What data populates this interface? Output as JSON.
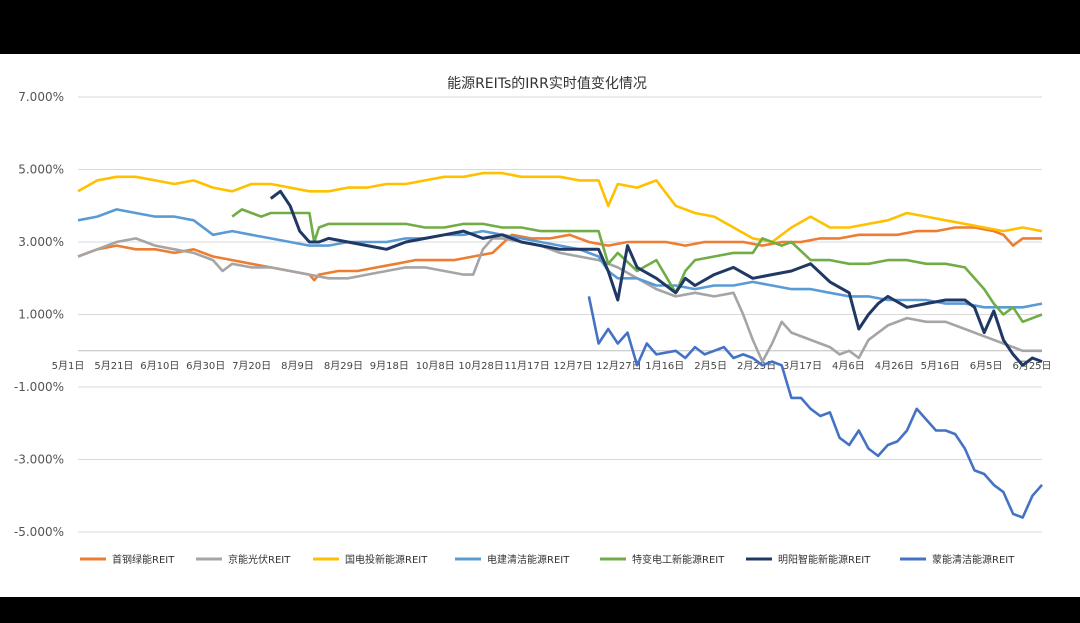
{
  "chart_data": {
    "type": "line",
    "title": "能源REITs的IRR实时值变化情况",
    "ylabel": "",
    "xlabel": "",
    "ylim": [
      -5,
      7
    ],
    "y_ticks": [
      "7.000%",
      "5.000%",
      "3.000%",
      "1.000%",
      "-1.000%",
      "-3.000%",
      "-5.000%"
    ],
    "y_tick_values": [
      7,
      5,
      3,
      1,
      -1,
      -3,
      -5
    ],
    "x_ticks": [
      "5月1日",
      "5月21日",
      "6月10日",
      "6月30日",
      "7月20日",
      "8月9日",
      "8月29日",
      "9月18日",
      "10月8日",
      "10月28日",
      "11月17日",
      "12月7日",
      "12月27日",
      "1月16日",
      "2月5日",
      "2月25日",
      "3月17日",
      "4月6日",
      "4月26日",
      "5月16日",
      "6月5日",
      "6月25日"
    ],
    "grid": true,
    "legend_position": "bottom",
    "series": [
      {
        "name": "首钢绿能REIT",
        "color": "#ED7D31",
        "x": [
          0,
          0.02,
          0.04,
          0.06,
          0.08,
          0.1,
          0.12,
          0.14,
          0.16,
          0.18,
          0.2,
          0.22,
          0.24,
          0.245,
          0.25,
          0.27,
          0.29,
          0.31,
          0.33,
          0.35,
          0.37,
          0.39,
          0.41,
          0.43,
          0.45,
          0.47,
          0.49,
          0.51,
          0.53,
          0.55,
          0.57,
          0.59,
          0.61,
          0.63,
          0.65,
          0.67,
          0.69,
          0.71,
          0.73,
          0.75,
          0.77,
          0.79,
          0.81,
          0.83,
          0.85,
          0.87,
          0.89,
          0.91,
          0.93,
          0.95,
          0.96,
          0.97,
          0.98,
          1
        ],
        "y": [
          2.6,
          2.8,
          2.9,
          2.8,
          2.8,
          2.7,
          2.8,
          2.6,
          2.5,
          2.4,
          2.3,
          2.2,
          2.1,
          1.95,
          2.1,
          2.2,
          2.2,
          2.3,
          2.4,
          2.5,
          2.5,
          2.5,
          2.6,
          2.7,
          3.2,
          3.1,
          3.1,
          3.2,
          3.0,
          2.9,
          3.0,
          3.0,
          3.0,
          2.9,
          3.0,
          3.0,
          3.0,
          2.9,
          3.0,
          3.0,
          3.1,
          3.1,
          3.2,
          3.2,
          3.2,
          3.3,
          3.3,
          3.4,
          3.4,
          3.3,
          3.2,
          2.9,
          3.1,
          3.1
        ]
      },
      {
        "name": "京能光伏REIT",
        "color": "#A5A5A5",
        "x": [
          0,
          0.02,
          0.04,
          0.06,
          0.08,
          0.1,
          0.12,
          0.14,
          0.15,
          0.16,
          0.18,
          0.2,
          0.22,
          0.24,
          0.26,
          0.28,
          0.3,
          0.32,
          0.34,
          0.36,
          0.38,
          0.4,
          0.41,
          0.42,
          0.43,
          0.44,
          0.46,
          0.48,
          0.5,
          0.52,
          0.54,
          0.56,
          0.58,
          0.6,
          0.62,
          0.64,
          0.66,
          0.68,
          0.69,
          0.7,
          0.71,
          0.72,
          0.73,
          0.74,
          0.76,
          0.78,
          0.79,
          0.8,
          0.81,
          0.82,
          0.84,
          0.86,
          0.88,
          0.9,
          0.92,
          0.94,
          0.96,
          0.98,
          1
        ],
        "y": [
          2.6,
          2.8,
          3.0,
          3.1,
          2.9,
          2.8,
          2.7,
          2.5,
          2.2,
          2.4,
          2.3,
          2.3,
          2.2,
          2.1,
          2.0,
          2.0,
          2.1,
          2.2,
          2.3,
          2.3,
          2.2,
          2.1,
          2.1,
          2.8,
          3.1,
          3.1,
          3.0,
          2.9,
          2.7,
          2.6,
          2.5,
          2.3,
          2.0,
          1.7,
          1.5,
          1.6,
          1.5,
          1.6,
          1.0,
          0.3,
          -0.3,
          0.2,
          0.8,
          0.5,
          0.3,
          0.1,
          -0.1,
          0.0,
          -0.2,
          0.3,
          0.7,
          0.9,
          0.8,
          0.8,
          0.6,
          0.4,
          0.2,
          0.0,
          0.0
        ]
      },
      {
        "name": "国电投新能源REIT",
        "color": "#FFC000",
        "x": [
          0,
          0.02,
          0.04,
          0.06,
          0.08,
          0.1,
          0.12,
          0.14,
          0.16,
          0.18,
          0.2,
          0.22,
          0.24,
          0.26,
          0.28,
          0.3,
          0.32,
          0.34,
          0.36,
          0.38,
          0.4,
          0.42,
          0.44,
          0.46,
          0.48,
          0.5,
          0.52,
          0.54,
          0.55,
          0.56,
          0.58,
          0.6,
          0.62,
          0.64,
          0.66,
          0.68,
          0.7,
          0.72,
          0.74,
          0.76,
          0.78,
          0.8,
          0.82,
          0.84,
          0.86,
          0.88,
          0.9,
          0.92,
          0.94,
          0.96,
          0.98,
          1
        ],
        "y": [
          4.4,
          4.7,
          4.8,
          4.8,
          4.7,
          4.6,
          4.7,
          4.5,
          4.4,
          4.6,
          4.6,
          4.5,
          4.4,
          4.4,
          4.5,
          4.5,
          4.6,
          4.6,
          4.7,
          4.8,
          4.8,
          4.9,
          4.9,
          4.8,
          4.8,
          4.8,
          4.7,
          4.7,
          4.0,
          4.6,
          4.5,
          4.7,
          4.0,
          3.8,
          3.7,
          3.4,
          3.1,
          3.0,
          3.4,
          3.7,
          3.4,
          3.4,
          3.5,
          3.6,
          3.8,
          3.7,
          3.6,
          3.5,
          3.4,
          3.3,
          3.4,
          3.3
        ]
      },
      {
        "name": "电建清洁能源REIT",
        "color": "#5B9BD5",
        "x": [
          0,
          0.02,
          0.04,
          0.06,
          0.08,
          0.1,
          0.12,
          0.14,
          0.16,
          0.18,
          0.2,
          0.22,
          0.24,
          0.26,
          0.28,
          0.3,
          0.32,
          0.34,
          0.36,
          0.38,
          0.4,
          0.42,
          0.44,
          0.46,
          0.48,
          0.5,
          0.52,
          0.54,
          0.55,
          0.56,
          0.58,
          0.6,
          0.62,
          0.64,
          0.66,
          0.68,
          0.7,
          0.72,
          0.74,
          0.76,
          0.78,
          0.8,
          0.82,
          0.84,
          0.86,
          0.88,
          0.9,
          0.92,
          0.94,
          0.96,
          0.98,
          1
        ],
        "y": [
          3.6,
          3.7,
          3.9,
          3.8,
          3.7,
          3.7,
          3.6,
          3.2,
          3.3,
          3.2,
          3.1,
          3.0,
          2.9,
          2.9,
          3.0,
          3.0,
          3.0,
          3.1,
          3.1,
          3.2,
          3.2,
          3.3,
          3.2,
          3.1,
          3.0,
          2.9,
          2.8,
          2.6,
          2.2,
          2.0,
          2.0,
          1.8,
          1.8,
          1.7,
          1.8,
          1.8,
          1.9,
          1.8,
          1.7,
          1.7,
          1.6,
          1.5,
          1.5,
          1.4,
          1.4,
          1.4,
          1.3,
          1.3,
          1.2,
          1.2,
          1.2,
          1.3
        ]
      },
      {
        "name": "特变电工新能源REIT",
        "color": "#70AD47",
        "x": [
          0.16,
          0.17,
          0.18,
          0.19,
          0.2,
          0.22,
          0.24,
          0.245,
          0.25,
          0.26,
          0.28,
          0.3,
          0.32,
          0.34,
          0.36,
          0.38,
          0.4,
          0.42,
          0.44,
          0.46,
          0.48,
          0.5,
          0.52,
          0.54,
          0.55,
          0.56,
          0.58,
          0.6,
          0.62,
          0.63,
          0.64,
          0.66,
          0.68,
          0.7,
          0.71,
          0.72,
          0.73,
          0.74,
          0.76,
          0.78,
          0.8,
          0.82,
          0.84,
          0.86,
          0.88,
          0.9,
          0.92,
          0.94,
          0.95,
          0.96,
          0.97,
          0.98,
          1
        ],
        "y": [
          3.7,
          3.9,
          3.8,
          3.7,
          3.8,
          3.8,
          3.8,
          3.0,
          3.4,
          3.5,
          3.5,
          3.5,
          3.5,
          3.5,
          3.4,
          3.4,
          3.5,
          3.5,
          3.4,
          3.4,
          3.3,
          3.3,
          3.3,
          3.3,
          2.4,
          2.7,
          2.2,
          2.5,
          1.6,
          2.2,
          2.5,
          2.6,
          2.7,
          2.7,
          3.1,
          3.0,
          2.9,
          3.0,
          2.5,
          2.5,
          2.4,
          2.4,
          2.5,
          2.5,
          2.4,
          2.4,
          2.3,
          1.7,
          1.3,
          1.0,
          1.2,
          0.8,
          1.0
        ]
      },
      {
        "name": "明阳智能新能源REIT",
        "color": "#203864",
        "x": [
          0.2,
          0.21,
          0.22,
          0.23,
          0.24,
          0.25,
          0.26,
          0.28,
          0.3,
          0.32,
          0.34,
          0.36,
          0.38,
          0.4,
          0.42,
          0.44,
          0.46,
          0.48,
          0.5,
          0.52,
          0.54,
          0.55,
          0.56,
          0.57,
          0.58,
          0.6,
          0.62,
          0.63,
          0.64,
          0.66,
          0.68,
          0.7,
          0.72,
          0.74,
          0.75,
          0.76,
          0.78,
          0.8,
          0.81,
          0.82,
          0.83,
          0.84,
          0.86,
          0.88,
          0.9,
          0.92,
          0.93,
          0.94,
          0.95,
          0.96,
          0.97,
          0.98,
          0.99,
          1
        ],
        "y": [
          4.2,
          4.4,
          4.0,
          3.3,
          3.0,
          3.0,
          3.1,
          3.0,
          2.9,
          2.8,
          3.0,
          3.1,
          3.2,
          3.3,
          3.1,
          3.2,
          3.0,
          2.9,
          2.8,
          2.8,
          2.8,
          2.2,
          1.4,
          2.9,
          2.3,
          2.0,
          1.6,
          2.0,
          1.8,
          2.1,
          2.3,
          2.0,
          2.1,
          2.2,
          2.3,
          2.4,
          1.9,
          1.6,
          0.6,
          1.0,
          1.3,
          1.5,
          1.2,
          1.3,
          1.4,
          1.4,
          1.2,
          0.5,
          1.1,
          0.3,
          -0.1,
          -0.4,
          -0.2,
          -0.3
        ]
      },
      {
        "name": "蒙能清洁能源REIT",
        "color": "#4472C4",
        "x": [
          0.53,
          0.54,
          0.55,
          0.56,
          0.57,
          0.58,
          0.59,
          0.6,
          0.62,
          0.63,
          0.64,
          0.65,
          0.66,
          0.67,
          0.68,
          0.69,
          0.7,
          0.71,
          0.72,
          0.73,
          0.74,
          0.75,
          0.76,
          0.77,
          0.78,
          0.79,
          0.8,
          0.81,
          0.82,
          0.83,
          0.84,
          0.85,
          0.86,
          0.87,
          0.88,
          0.89,
          0.9,
          0.91,
          0.92,
          0.93,
          0.94,
          0.95,
          0.96,
          0.97,
          0.98,
          0.99,
          1
        ],
        "y": [
          1.5,
          0.2,
          0.6,
          0.2,
          0.5,
          -0.4,
          0.2,
          -0.1,
          0.0,
          -0.2,
          0.1,
          -0.1,
          0.0,
          0.1,
          -0.2,
          -0.1,
          -0.2,
          -0.4,
          -0.3,
          -0.4,
          -1.3,
          -1.3,
          -1.6,
          -1.8,
          -1.7,
          -2.4,
          -2.6,
          -2.2,
          -2.7,
          -2.9,
          -2.6,
          -2.5,
          -2.2,
          -1.6,
          -1.9,
          -2.2,
          -2.2,
          -2.3,
          -2.7,
          -3.3,
          -3.4,
          -3.7,
          -3.9,
          -4.5,
          -4.6,
          -4.0,
          -3.7
        ]
      }
    ]
  }
}
